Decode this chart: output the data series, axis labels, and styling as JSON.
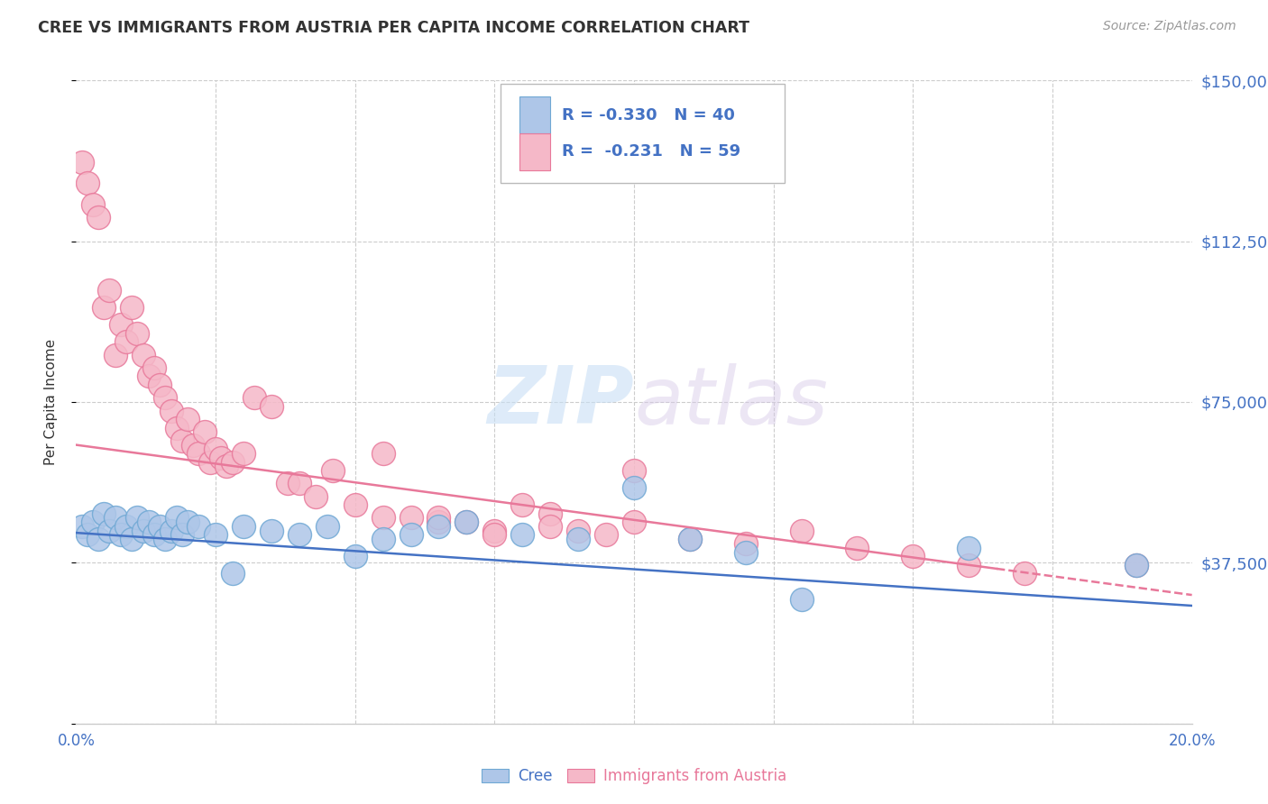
{
  "title": "CREE VS IMMIGRANTS FROM AUSTRIA PER CAPITA INCOME CORRELATION CHART",
  "source": "Source: ZipAtlas.com",
  "ylabel": "Per Capita Income",
  "xlim": [
    0.0,
    0.2
  ],
  "ylim": [
    0,
    150000
  ],
  "yticks": [
    0,
    37500,
    75000,
    112500,
    150000
  ],
  "ytick_labels": [
    "",
    "$37,500",
    "$75,000",
    "$112,500",
    "$150,000"
  ],
  "xticks": [
    0.0,
    0.025,
    0.05,
    0.075,
    0.1,
    0.125,
    0.15,
    0.175,
    0.2
  ],
  "xtick_labels_ends": {
    "0.0": "0.0%",
    "0.2": "20.0%"
  },
  "watermark_zip": "ZIP",
  "watermark_atlas": "atlas",
  "legend_line1": "R = -0.330   N = 40",
  "legend_line2": "R =  -0.231   N = 59",
  "cree_color": "#aec6e8",
  "austria_color": "#f5b8c8",
  "cree_edge": "#6fa8d4",
  "austria_edge": "#e8789a",
  "line_cree": "#4472c4",
  "line_austria": "#e8789a",
  "label_color": "#4472c4",
  "title_color": "#333333",
  "source_color": "#999999",
  "grid_color": "#cccccc",
  "cree_x": [
    0.001,
    0.002,
    0.003,
    0.004,
    0.005,
    0.006,
    0.007,
    0.008,
    0.009,
    0.01,
    0.011,
    0.012,
    0.013,
    0.014,
    0.015,
    0.016,
    0.017,
    0.018,
    0.019,
    0.02,
    0.022,
    0.025,
    0.028,
    0.03,
    0.035,
    0.04,
    0.045,
    0.05,
    0.055,
    0.06,
    0.065,
    0.07,
    0.08,
    0.09,
    0.1,
    0.11,
    0.12,
    0.13,
    0.16,
    0.19
  ],
  "cree_y": [
    46000,
    44000,
    47000,
    43000,
    49000,
    45000,
    48000,
    44000,
    46000,
    43000,
    48000,
    45000,
    47000,
    44000,
    46000,
    43000,
    45000,
    48000,
    44000,
    47000,
    46000,
    44000,
    35000,
    46000,
    45000,
    44000,
    46000,
    39000,
    43000,
    44000,
    46000,
    47000,
    44000,
    43000,
    55000,
    43000,
    40000,
    29000,
    41000,
    37000
  ],
  "austria_x": [
    0.001,
    0.002,
    0.003,
    0.004,
    0.005,
    0.006,
    0.007,
    0.008,
    0.009,
    0.01,
    0.011,
    0.012,
    0.013,
    0.014,
    0.015,
    0.016,
    0.017,
    0.018,
    0.019,
    0.02,
    0.021,
    0.022,
    0.023,
    0.024,
    0.025,
    0.026,
    0.027,
    0.028,
    0.03,
    0.032,
    0.035,
    0.038,
    0.04,
    0.043,
    0.046,
    0.05,
    0.055,
    0.06,
    0.065,
    0.07,
    0.075,
    0.08,
    0.085,
    0.09,
    0.095,
    0.1,
    0.11,
    0.12,
    0.13,
    0.14,
    0.15,
    0.16,
    0.17,
    0.1,
    0.055,
    0.065,
    0.075,
    0.085,
    0.19
  ],
  "austria_y": [
    131000,
    126000,
    121000,
    118000,
    97000,
    101000,
    86000,
    93000,
    89000,
    97000,
    91000,
    86000,
    81000,
    83000,
    79000,
    76000,
    73000,
    69000,
    66000,
    71000,
    65000,
    63000,
    68000,
    61000,
    64000,
    62000,
    60000,
    61000,
    63000,
    76000,
    74000,
    56000,
    56000,
    53000,
    59000,
    51000,
    48000,
    48000,
    47000,
    47000,
    45000,
    51000,
    49000,
    45000,
    44000,
    47000,
    43000,
    42000,
    45000,
    41000,
    39000,
    37000,
    35000,
    59000,
    63000,
    48000,
    44000,
    46000,
    37000
  ]
}
